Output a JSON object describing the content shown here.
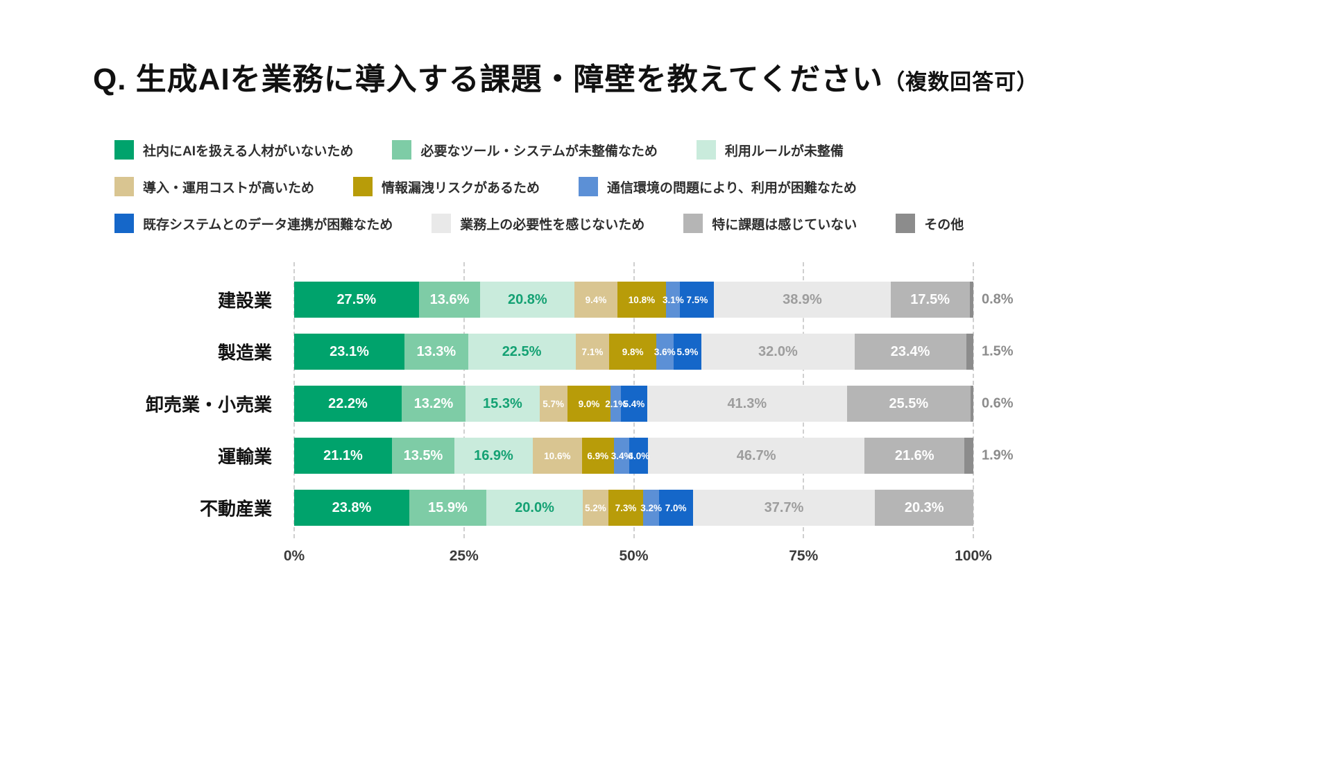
{
  "title": {
    "main": "Q. 生成AIを業務に導入する課題・障壁を教えてください",
    "sub": "（複数回答可）"
  },
  "legend": {
    "rows": [
      [
        {
          "label": "社内にAIを扱える人材がいないため",
          "color": "#00A36C"
        },
        {
          "label": "必要なツール・システムが未整備なため",
          "color": "#7ECCA6"
        },
        {
          "label": "利用ルールが未整備",
          "color": "#C9EBDC"
        }
      ],
      [
        {
          "label": "導入・運用コストが高いため",
          "color": "#D9C591"
        },
        {
          "label": "情報漏洩リスクがあるため",
          "color": "#B89C09"
        },
        {
          "label": "通信環境の問題により、利用が困難なため",
          "color": "#5C90D6"
        }
      ],
      [
        {
          "label": "既存システムとのデータ連携が困難なため",
          "color": "#1567C9"
        },
        {
          "label": "業務上の必要性を感じないため",
          "color": "#E9E9E9"
        },
        {
          "label": "特に課題は感じていない",
          "color": "#B5B5B5"
        },
        {
          "label": "その他",
          "color": "#8C8C8C"
        }
      ]
    ]
  },
  "chart_data": {
    "type": "bar",
    "orientation": "horizontal-stacked-normalized",
    "note": "segment widths are normalized to each row total; labels show raw multi-answer percentages",
    "categories": [
      "建設業",
      "製造業",
      "卸売業・小売業",
      "運輸業",
      "不動産業"
    ],
    "series": [
      {
        "name": "社内にAIを扱える人材がいないため",
        "color": "#00A36C",
        "label_color": "#ffffff",
        "values": [
          27.5,
          23.1,
          22.2,
          21.1,
          23.8
        ]
      },
      {
        "name": "必要なツール・システムが未整備なため",
        "color": "#7ECCA6",
        "label_color": "#ffffff",
        "values": [
          13.6,
          13.3,
          13.2,
          13.5,
          15.9
        ]
      },
      {
        "name": "利用ルールが未整備",
        "color": "#C9EBDC",
        "label_color": "#14A173",
        "values": [
          20.8,
          22.5,
          15.3,
          16.9,
          20.0
        ]
      },
      {
        "name": "導入・運用コストが高いため",
        "color": "#D9C591",
        "label_color": "#ffffff",
        "values": [
          9.4,
          7.1,
          5.7,
          10.6,
          5.2
        ]
      },
      {
        "name": "情報漏洩リスクがあるため",
        "color": "#B89C09",
        "label_color": "#ffffff",
        "values": [
          10.8,
          9.8,
          9.0,
          6.9,
          7.3
        ]
      },
      {
        "name": "通信環境の問題により、利用が困難なため",
        "color": "#5C90D6",
        "label_color": "#ffffff",
        "values": [
          3.1,
          3.6,
          2.1,
          3.4,
          3.2
        ]
      },
      {
        "name": "既存システムとのデータ連携が困難なため",
        "color": "#1567C9",
        "label_color": "#ffffff",
        "values": [
          7.5,
          5.9,
          5.4,
          4.0,
          7.0
        ]
      },
      {
        "name": "業務上の必要性を感じないため",
        "color": "#E9E9E9",
        "label_color": "#9d9d9d",
        "values": [
          38.9,
          32.0,
          41.3,
          46.7,
          37.7
        ]
      },
      {
        "name": "特に課題は感じていない",
        "color": "#B5B5B5",
        "label_color": "#ffffff",
        "values": [
          17.5,
          23.4,
          25.5,
          21.6,
          20.3
        ]
      },
      {
        "name": "その他",
        "color": "#8C8C8C",
        "label_color": "#8c8c8c",
        "label_outside": true,
        "values": [
          0.8,
          1.5,
          0.6,
          1.9,
          null
        ]
      }
    ],
    "x_ticks": [
      "0%",
      "25%",
      "50%",
      "75%",
      "100%"
    ],
    "xlim": [
      0,
      100
    ],
    "grid": "dashed-vertical",
    "legend_position": "top-left"
  }
}
